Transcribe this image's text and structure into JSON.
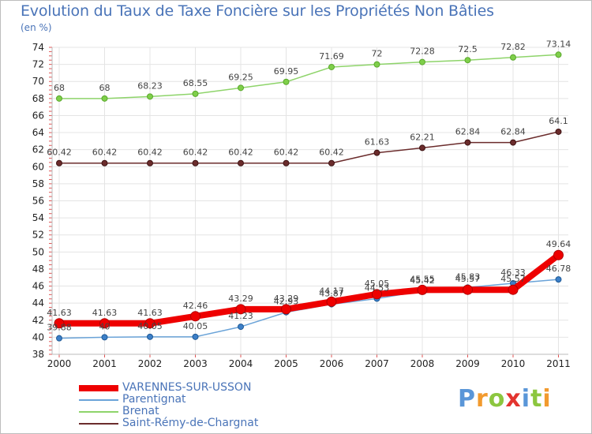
{
  "chart_data": {
    "type": "line",
    "title": "Evolution du Taux de Taxe Foncière sur les Propriétés Non Bâties",
    "subtitle": "(en %)",
    "xlabel": "",
    "ylabel": "",
    "ylim": [
      38,
      74
    ],
    "yticks": [
      38,
      40,
      42,
      44,
      46,
      48,
      50,
      52,
      54,
      56,
      58,
      60,
      62,
      64,
      66,
      68,
      70,
      72,
      74
    ],
    "x": [
      "2000",
      "2001",
      "2002",
      "2003",
      "2004",
      "2005",
      "2006",
      "2007",
      "2008",
      "2009",
      "2010",
      "2011"
    ],
    "grid": true,
    "legend_position": "bottom-left",
    "series": [
      {
        "name": "Saint-Rémy-de-Chargnat",
        "color": "#6b2c2c",
        "values": [
          60.42,
          60.42,
          60.42,
          60.42,
          60.42,
          60.42,
          60.42,
          61.63,
          62.21,
          62.84,
          62.84,
          64.1
        ],
        "labels": [
          "60.42",
          "60.42",
          "60.42",
          "60.42",
          "60.42",
          "60.42",
          "60.42",
          "61.63",
          "62.21",
          "62.84",
          "62.84",
          "64.1"
        ]
      },
      {
        "name": "Brenat",
        "color": "#8ed46a",
        "values": [
          68,
          68,
          68.23,
          68.55,
          69.25,
          69.95,
          71.69,
          72,
          72.28,
          72.5,
          72.82,
          73.14
        ],
        "labels": [
          "68",
          "68",
          "68.23",
          "68.55",
          "69.25",
          "69.95",
          "71.69",
          "72",
          "72.28",
          "72.5",
          "72.82",
          "73.14"
        ]
      },
      {
        "name": "Parentignat",
        "color": "#6aa3d8",
        "values": [
          39.88,
          40,
          40.05,
          40.05,
          41.23,
          42.93,
          43.87,
          44.53,
          45.42,
          45.83,
          46.33,
          46.78
        ],
        "labels": [
          "39.88",
          "40",
          "40.05",
          "40.05",
          "41.23",
          "42.93",
          "43.87",
          "44.53",
          "45.42",
          "45.83",
          "46.33",
          "46.78"
        ]
      },
      {
        "name": "VARENNES-SUR-USSON",
        "color": "#ee0000",
        "values": [
          41.63,
          41.63,
          41.63,
          42.46,
          43.29,
          43.29,
          44.17,
          45.05,
          45.55,
          45.57,
          45.57,
          49.64
        ],
        "labels": [
          "41.63",
          "41.63",
          "41.63",
          "42.46",
          "43.29",
          "43.29",
          "44.17",
          "45.05",
          "45.55",
          "45.57",
          "45.57",
          "49.64"
        ]
      }
    ],
    "legend_order": [
      "VARENNES-SUR-USSON",
      "Parentignat",
      "Brenat",
      "Saint-Rémy-de-Chargnat"
    ]
  },
  "logo": {
    "letters": [
      "P",
      "r",
      "o",
      "x",
      "i",
      "t",
      "i"
    ],
    "colors": [
      "#5a96d8",
      "#f29a2e",
      "#8cc63f",
      "#e3342f",
      "#5a96d8",
      "#8cc63f",
      "#f29a2e"
    ]
  }
}
